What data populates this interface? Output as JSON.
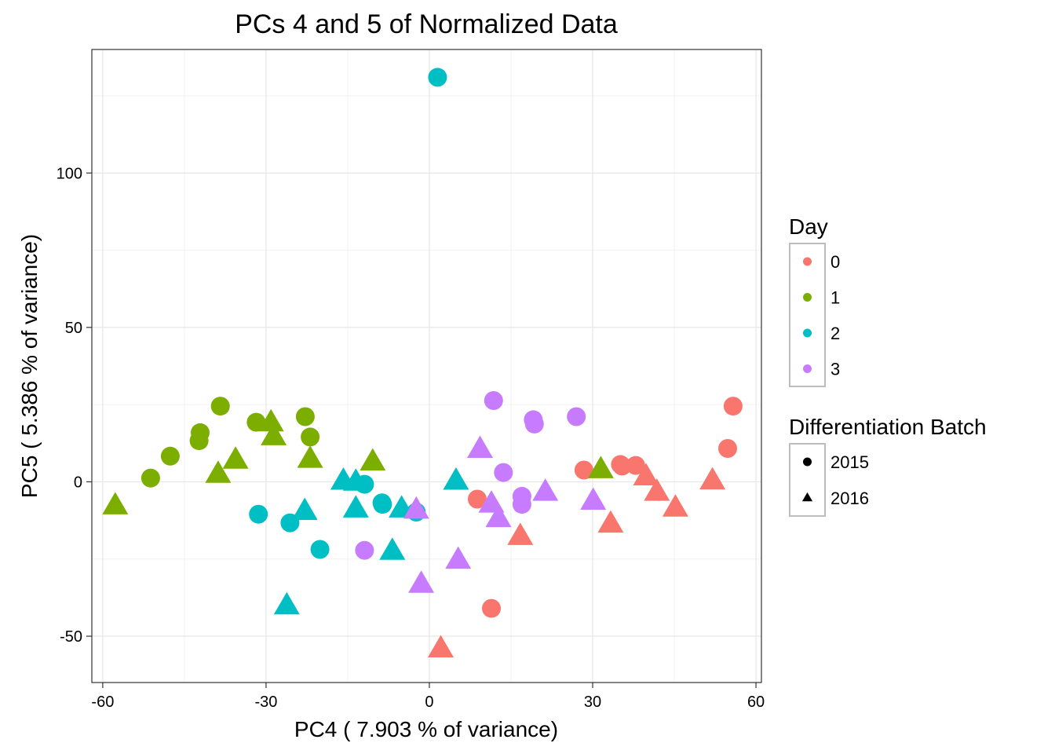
{
  "chart_data": {
    "type": "scatter",
    "title": "PCs 4 and 5 of Normalized Data",
    "xlabel": "PC4 ( 7.903 % of variance)",
    "ylabel": "PC5 ( 5.386 % of variance)",
    "xlim": [
      -62,
      61
    ],
    "ylim": [
      -65,
      140
    ],
    "x_ticks": [
      -60,
      -30,
      0,
      30,
      60
    ],
    "x_tick_labels": [
      "-60",
      "-30",
      "0",
      "30",
      "60"
    ],
    "y_ticks": [
      -50,
      0,
      50,
      100
    ],
    "y_tick_labels": [
      "-50",
      "0",
      "50",
      "100"
    ],
    "grid": true,
    "legend_placement": "right",
    "color_legend": {
      "title": "Day",
      "entries": [
        {
          "label": "0",
          "color": "#F8766D"
        },
        {
          "label": "1",
          "color": "#7CAE00"
        },
        {
          "label": "2",
          "color": "#00BFC4"
        },
        {
          "label": "3",
          "color": "#C77CFF"
        }
      ]
    },
    "shape_legend": {
      "title": "Differentiation Batch",
      "entries": [
        {
          "label": "2015",
          "shape": "circle"
        },
        {
          "label": "2016",
          "shape": "triangle"
        }
      ]
    },
    "points": [
      {
        "x": 55.8,
        "y": 24.5,
        "day": "0",
        "batch": "2015"
      },
      {
        "x": 54.8,
        "y": 10.8,
        "day": "0",
        "batch": "2015"
      },
      {
        "x": 35.1,
        "y": 5.6,
        "day": "0",
        "batch": "2015"
      },
      {
        "x": 37.9,
        "y": 5.3,
        "day": "0",
        "batch": "2015"
      },
      {
        "x": 28.4,
        "y": 3.8,
        "day": "0",
        "batch": "2015"
      },
      {
        "x": 35.4,
        "y": 5.1,
        "day": "0",
        "batch": "2015"
      },
      {
        "x": 8.8,
        "y": -5.6,
        "day": "0",
        "batch": "2015"
      },
      {
        "x": 11.4,
        "y": -41.0,
        "day": "0",
        "batch": "2015"
      },
      {
        "x": 39.8,
        "y": 1.6,
        "day": "0",
        "batch": "2016"
      },
      {
        "x": 41.8,
        "y": -3.4,
        "day": "0",
        "batch": "2016"
      },
      {
        "x": 45.2,
        "y": -8.5,
        "day": "0",
        "batch": "2016"
      },
      {
        "x": 52.0,
        "y": 0.3,
        "day": "0",
        "batch": "2016"
      },
      {
        "x": 33.3,
        "y": -13.7,
        "day": "0",
        "batch": "2016"
      },
      {
        "x": 16.7,
        "y": -17.7,
        "day": "0",
        "batch": "2016"
      },
      {
        "x": 2.1,
        "y": -54.1,
        "day": "0",
        "batch": "2016"
      },
      {
        "x": -51.2,
        "y": 1.2,
        "day": "1",
        "batch": "2015"
      },
      {
        "x": -47.6,
        "y": 8.3,
        "day": "1",
        "batch": "2015"
      },
      {
        "x": -42.1,
        "y": 15.9,
        "day": "1",
        "batch": "2015"
      },
      {
        "x": -42.3,
        "y": 13.3,
        "day": "1",
        "batch": "2015"
      },
      {
        "x": -38.4,
        "y": 24.5,
        "day": "1",
        "batch": "2015"
      },
      {
        "x": -31.8,
        "y": 19.3,
        "day": "1",
        "batch": "2015"
      },
      {
        "x": -22.8,
        "y": 21.1,
        "day": "1",
        "batch": "2015"
      },
      {
        "x": -21.9,
        "y": 14.5,
        "day": "1",
        "batch": "2015"
      },
      {
        "x": -57.7,
        "y": -7.8,
        "day": "1",
        "batch": "2016"
      },
      {
        "x": -38.8,
        "y": 2.4,
        "day": "1",
        "batch": "2016"
      },
      {
        "x": -35.6,
        "y": 7.0,
        "day": "1",
        "batch": "2016"
      },
      {
        "x": -29.1,
        "y": 19.1,
        "day": "1",
        "batch": "2016"
      },
      {
        "x": -28.6,
        "y": 14.6,
        "day": "1",
        "batch": "2016"
      },
      {
        "x": -21.9,
        "y": 7.3,
        "day": "1",
        "batch": "2016"
      },
      {
        "x": -10.4,
        "y": 6.4,
        "day": "1",
        "batch": "2016"
      },
      {
        "x": 31.5,
        "y": 3.9,
        "day": "1",
        "batch": "2016"
      },
      {
        "x": 1.5,
        "y": 131.0,
        "day": "2",
        "batch": "2015"
      },
      {
        "x": -31.4,
        "y": -10.5,
        "day": "2",
        "batch": "2015"
      },
      {
        "x": -25.6,
        "y": -13.3,
        "day": "2",
        "batch": "2015"
      },
      {
        "x": -20.1,
        "y": -21.9,
        "day": "2",
        "batch": "2015"
      },
      {
        "x": -11.9,
        "y": -0.8,
        "day": "2",
        "batch": "2015"
      },
      {
        "x": -8.7,
        "y": -6.8,
        "day": "2",
        "batch": "2015"
      },
      {
        "x": -8.6,
        "y": -7.3,
        "day": "2",
        "batch": "2015"
      },
      {
        "x": -2.4,
        "y": -9.8,
        "day": "2",
        "batch": "2015"
      },
      {
        "x": -15.8,
        "y": 0.2,
        "day": "2",
        "batch": "2016"
      },
      {
        "x": -13.5,
        "y": -0.1,
        "day": "2",
        "batch": "2016"
      },
      {
        "x": -13.5,
        "y": -8.8,
        "day": "2",
        "batch": "2016"
      },
      {
        "x": -22.9,
        "y": -9.6,
        "day": "2",
        "batch": "2016"
      },
      {
        "x": -26.2,
        "y": -40.2,
        "day": "2",
        "batch": "2016"
      },
      {
        "x": -6.8,
        "y": -22.5,
        "day": "2",
        "batch": "2016"
      },
      {
        "x": -5.1,
        "y": -8.8,
        "day": "2",
        "batch": "2016"
      },
      {
        "x": 4.9,
        "y": 0.2,
        "day": "2",
        "batch": "2016"
      },
      {
        "x": 11.8,
        "y": 26.3,
        "day": "3",
        "batch": "2015"
      },
      {
        "x": 19.1,
        "y": 20.1,
        "day": "3",
        "batch": "2015"
      },
      {
        "x": 19.3,
        "y": 18.7,
        "day": "3",
        "batch": "2015"
      },
      {
        "x": 27.0,
        "y": 21.1,
        "day": "3",
        "batch": "2015"
      },
      {
        "x": 13.6,
        "y": 3.0,
        "day": "3",
        "batch": "2015"
      },
      {
        "x": 17.0,
        "y": -4.7,
        "day": "3",
        "batch": "2015"
      },
      {
        "x": 17.0,
        "y": -7.3,
        "day": "3",
        "batch": "2015"
      },
      {
        "x": -11.9,
        "y": -22.2,
        "day": "3",
        "batch": "2015"
      },
      {
        "x": 9.3,
        "y": 10.5,
        "day": "3",
        "batch": "2016"
      },
      {
        "x": 11.4,
        "y": -7.2,
        "day": "3",
        "batch": "2016"
      },
      {
        "x": 12.7,
        "y": -11.9,
        "day": "3",
        "batch": "2016"
      },
      {
        "x": 21.3,
        "y": -3.4,
        "day": "3",
        "batch": "2016"
      },
      {
        "x": 30.1,
        "y": -6.3,
        "day": "3",
        "batch": "2016"
      },
      {
        "x": -2.4,
        "y": -9.2,
        "day": "3",
        "batch": "2016"
      },
      {
        "x": 5.3,
        "y": -25.4,
        "day": "3",
        "batch": "2016"
      },
      {
        "x": -1.5,
        "y": -33.2,
        "day": "3",
        "batch": "2016"
      }
    ]
  }
}
